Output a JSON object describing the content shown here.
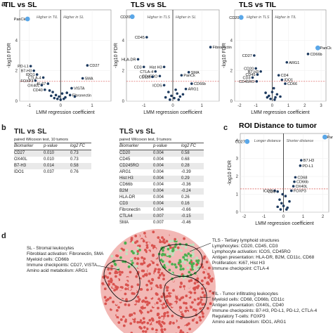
{
  "panel_labels": {
    "a": "a",
    "b": "b",
    "c": "c",
    "d": "d"
  },
  "chart_data": [
    {
      "type": "scatter",
      "title": "TIL vs SL",
      "xlabel": "LMM regression coefficient",
      "ylabel": "-log10 FDR",
      "xlim": [
        -1.3,
        1.6
      ],
      "ylim": [
        0,
        6
      ],
      "xticks": [
        -1,
        0,
        1
      ],
      "yticks": [
        0,
        2,
        4
      ],
      "threshold": 1.3,
      "region_labels": [
        "Higher in TIL",
        "Higher in SL"
      ],
      "highlight_color": "#5aa7e8",
      "point_color": "#1d3a5f",
      "threshold_color": "#d9534f",
      "points": [
        {
          "x": -1.05,
          "y": 5.4,
          "label": "PanCk",
          "hl": true
        },
        {
          "x": -0.95,
          "y": 2.3,
          "label": "PD-L1"
        },
        {
          "x": -0.85,
          "y": 2.0,
          "label": "B7-H3"
        },
        {
          "x": -0.75,
          "y": 1.75,
          "label": "IDO1"
        },
        {
          "x": -0.55,
          "y": 1.55,
          "label": "CTLA-4"
        },
        {
          "x": -0.8,
          "y": 1.35,
          "label": "FOXP3"
        },
        {
          "x": -0.4,
          "y": 1.15,
          "label": "Ki-67"
        },
        {
          "x": -0.6,
          "y": 1.05,
          "label": "OX40L"
        },
        {
          "x": -0.5,
          "y": 0.75,
          "label": "CD40"
        },
        {
          "x": 0.85,
          "y": 2.35,
          "label": "CD27"
        },
        {
          "x": 0.7,
          "y": 1.5,
          "label": "SMA"
        },
        {
          "x": 0.35,
          "y": 0.85,
          "label": "VISTA"
        },
        {
          "x": 0.3,
          "y": 0.4,
          "label": "Fibronectin"
        },
        {
          "x": -0.25,
          "y": 0.6
        },
        {
          "x": -0.15,
          "y": 0.4
        },
        {
          "x": -0.05,
          "y": 0.3
        },
        {
          "x": 0.05,
          "y": 0.5
        },
        {
          "x": 0.15,
          "y": 0.25
        },
        {
          "x": -0.3,
          "y": 0.35
        },
        {
          "x": 0.1,
          "y": 0.15
        },
        {
          "x": -0.1,
          "y": 0.15
        },
        {
          "x": 0.2,
          "y": 0.55
        },
        {
          "x": -0.2,
          "y": 0.2
        },
        {
          "x": 0.0,
          "y": 0.1
        },
        {
          "x": 0.45,
          "y": 0.3
        },
        {
          "x": -0.35,
          "y": 0.7
        }
      ]
    },
    {
      "type": "scatter",
      "title": "TLS vs SL",
      "xlabel": "LMM regression coefficient",
      "ylabel": "-log10 FDR",
      "xlim": [
        -1.6,
        1.6
      ],
      "ylim": [
        0,
        6
      ],
      "xticks": [
        -1,
        0,
        1
      ],
      "yticks": [
        0,
        2,
        4
      ],
      "threshold": 1.3,
      "region_labels": [
        "Higher in TLS",
        "Higher in SL"
      ],
      "highlight_color": "#5aa7e8",
      "point_color": "#1d3a5f",
      "threshold_color": "#d9534f",
      "points": [
        {
          "x": -1.4,
          "y": 5.55,
          "label": "CD20",
          "hl": true
        },
        {
          "x": -0.9,
          "y": 4.2,
          "label": "CD45"
        },
        {
          "x": -1.2,
          "y": 2.75,
          "label": "HLA-DR"
        },
        {
          "x": -1.0,
          "y": 2.25,
          "label": "CD3"
        },
        {
          "x": -0.6,
          "y": 1.95,
          "label": "CTLA-4"
        },
        {
          "x": -0.3,
          "y": 2.25,
          "label": "Hist H3"
        },
        {
          "x": -0.45,
          "y": 1.65,
          "label": "CD45RO"
        },
        {
          "x": -0.7,
          "y": 1.6,
          "label": "CD11c"
        },
        {
          "x": -0.3,
          "y": 1.05,
          "label": "ICOS"
        },
        {
          "x": 1.3,
          "y": 3.55,
          "label": "Fibronectin"
        },
        {
          "x": 0.55,
          "y": 1.9,
          "label": "SMA"
        },
        {
          "x": 0.3,
          "y": 1.7,
          "label": "PanCk"
        },
        {
          "x": 0.65,
          "y": 1.15,
          "label": "CD66b"
        },
        {
          "x": 0.45,
          "y": 0.8,
          "label": "ARG1"
        },
        {
          "x": -0.15,
          "y": 0.6
        },
        {
          "x": -0.05,
          "y": 0.35
        },
        {
          "x": 0.05,
          "y": 0.2
        },
        {
          "x": 0.15,
          "y": 0.5
        },
        {
          "x": 0.25,
          "y": 0.3
        },
        {
          "x": -0.25,
          "y": 0.25
        },
        {
          "x": 0.1,
          "y": 0.75
        },
        {
          "x": -0.1,
          "y": 0.1
        },
        {
          "x": 0.35,
          "y": 0.45
        },
        {
          "x": 0.2,
          "y": 0.1
        }
      ]
    },
    {
      "type": "scatter",
      "title": "TLS vs TIL",
      "xlabel": "LMM regression coefficient",
      "ylabel": "-log10 FDR",
      "xlim": [
        -2.3,
        3.3
      ],
      "ylim": [
        0,
        6
      ],
      "xticks": [
        -2,
        -1,
        0,
        1,
        2,
        3
      ],
      "yticks": [
        0,
        2,
        4
      ],
      "threshold": 1.3,
      "region_labels": [
        "Higher in TLS",
        "Higher in TIL"
      ],
      "highlight_color": "#5aa7e8",
      "point_color": "#1d3a5f",
      "threshold_color": "#d9534f",
      "points": [
        {
          "x": -1.9,
          "y": 5.5,
          "label": "CD20",
          "hl": true
        },
        {
          "x": 2.8,
          "y": 3.5,
          "label": "PanCk",
          "hl": true
        },
        {
          "x": 2.2,
          "y": 3.1,
          "label": "CD66b"
        },
        {
          "x": -1.1,
          "y": 3.0,
          "label": "CD27"
        },
        {
          "x": -1.0,
          "y": 2.15,
          "label": "CD20"
        },
        {
          "x": -0.7,
          "y": 1.95,
          "label": "B7.H3"
        },
        {
          "x": -0.9,
          "y": 1.75,
          "label": "CD45"
        },
        {
          "x": -1.2,
          "y": 1.55,
          "label": "CD3"
        },
        {
          "x": -0.95,
          "y": 1.3,
          "label": "CD45RO"
        },
        {
          "x": 0.9,
          "y": 2.55,
          "label": "ARG1"
        },
        {
          "x": 0.4,
          "y": 1.7,
          "label": "CD4"
        },
        {
          "x": 0.6,
          "y": 1.4,
          "label": "IDO1"
        },
        {
          "x": 0.8,
          "y": 1.15,
          "label": "CD66"
        },
        {
          "x": -0.4,
          "y": 0.55
        },
        {
          "x": -0.2,
          "y": 0.35
        },
        {
          "x": 0.0,
          "y": 0.6
        },
        {
          "x": 0.2,
          "y": 0.25
        },
        {
          "x": 0.1,
          "y": 0.85
        },
        {
          "x": -0.1,
          "y": 0.15
        },
        {
          "x": 0.3,
          "y": 0.45
        },
        {
          "x": -0.3,
          "y": 0.25
        },
        {
          "x": 0.5,
          "y": 0.3
        },
        {
          "x": 0.15,
          "y": 0.1
        }
      ]
    },
    {
      "type": "scatter",
      "title": "ROI Distance to tumor",
      "xlabel": "LMM regression coefficient",
      "ylabel": "-log10 FDR",
      "xlim": [
        -2.2,
        2.3
      ],
      "ylim": [
        0,
        4.4
      ],
      "xticks": [
        -2,
        -1,
        0,
        1,
        2
      ],
      "yticks": [
        0,
        1,
        2,
        3,
        4
      ],
      "threshold": 1.3,
      "region_labels": [
        "Longer distance",
        "Shorter distance"
      ],
      "highlight_color": "#5aa7e8",
      "point_color": "#1d3a5f",
      "threshold_color": "#d9534f",
      "points": [
        {
          "x": 2.1,
          "y": 4.2,
          "label": "PanCk",
          "hl": true
        },
        {
          "x": -1.85,
          "y": 3.95,
          "label": "CD27",
          "hl": true
        },
        {
          "x": 0.9,
          "y": 2.9,
          "label": "B7.H3"
        },
        {
          "x": 0.85,
          "y": 2.6,
          "label": "PD-L1"
        },
        {
          "x": 0.6,
          "y": 1.95,
          "label": "CD68"
        },
        {
          "x": 0.55,
          "y": 1.7,
          "label": "CD66b"
        },
        {
          "x": 0.5,
          "y": 1.45,
          "label": "OX40L"
        },
        {
          "x": 0.4,
          "y": 1.2,
          "label": "FOXP3"
        },
        {
          "x": -0.45,
          "y": 1.2,
          "label": "ICOS"
        },
        {
          "x": -0.3,
          "y": 1.15,
          "label": "CD3"
        },
        {
          "x": -0.2,
          "y": 0.7
        },
        {
          "x": -0.1,
          "y": 0.5
        },
        {
          "x": 0.0,
          "y": 0.35
        },
        {
          "x": 0.1,
          "y": 0.9
        },
        {
          "x": 0.2,
          "y": 0.25
        },
        {
          "x": -0.3,
          "y": 0.3
        },
        {
          "x": 0.3,
          "y": 0.6
        },
        {
          "x": -0.05,
          "y": 1.0
        },
        {
          "x": 0.15,
          "y": 0.15
        },
        {
          "x": -0.15,
          "y": 0.15
        }
      ]
    }
  ],
  "tables": [
    {
      "title": "TIL vs SL",
      "subtitle": "paired Wilcoxon test, 10 tumors",
      "columns": [
        "Biomarker",
        "p-value",
        "log2 FC"
      ],
      "rows": [
        [
          "CD27",
          "0.010",
          "0.73"
        ],
        [
          "OX40L",
          "0.010",
          "0.73"
        ],
        [
          "B7-H3",
          "0.014",
          "0.58"
        ],
        [
          "IDO1",
          "0.037",
          "0.76"
        ]
      ]
    },
    {
      "title": "TLS vs SL",
      "subtitle": "paired Wilcoxon test, 9 tumors",
      "columns": [
        "Biomarker",
        "p-value",
        "log2 FC"
      ],
      "rows": [
        [
          "CD20",
          "0.004",
          "0.58"
        ],
        [
          "CD45",
          "0.004",
          "0.68"
        ],
        [
          "CD245RO",
          "0.004",
          "0.28"
        ],
        [
          "ARG1",
          "0.004",
          "-0.39"
        ],
        [
          "Hist H3",
          "0.004",
          "0.29"
        ],
        [
          "CD66b",
          "0.004",
          "-0.36"
        ],
        [
          "B2M",
          "0.004",
          "-0.24"
        ],
        [
          "HLA-DR",
          "0.004",
          "0.26"
        ],
        [
          "CD3",
          "0.004",
          "0.16"
        ],
        [
          "Fibronectin",
          "0.004",
          "-0.66"
        ],
        [
          "CTLA4",
          "0.007",
          "-0.15"
        ],
        [
          "SMA",
          "0.007",
          "-0.46"
        ]
      ]
    }
  ],
  "diagram": {
    "sl": {
      "title": "SL - Stromal leukocytes",
      "lines": [
        "Fibroblast activation: Fibronectin, SMA",
        "Myeloid cells: CD66b",
        "Immune checkpoints: CD27, VISTA",
        "Amino acid metabolism: ARG1"
      ]
    },
    "tls": {
      "title": "TLS - Tertiary lymphoid structures",
      "lines": [
        "Lymphocytes: CD20, CD45, CD3",
        "Lymphocyte activation: ICOS, CD45RO",
        "Antigen presentation: HLA-DR, B2M, CD11c, CD68",
        "Proliferation: Ki67, Hist H3",
        "Immune checkpoint: CTLA-4"
      ]
    },
    "til": {
      "title": "TIL - Tumor infiltrating leukocytes",
      "lines": [
        "Myeloid cells: CD68, CD66b, CD11c",
        "Antigen presentation: OX40L, CD40",
        "Immune checkpoints: B7-H3, PD-L1, PD-L2, CTLA-4",
        "Regulatory T-cells: FOXP3",
        "Amino acid metabolism: IDO1, ARG1"
      ]
    },
    "colors": {
      "red": "#d9534f",
      "green": "#4caf50",
      "pale_red": "#f2b8b5",
      "pale_green": "#bfe3bf"
    }
  }
}
